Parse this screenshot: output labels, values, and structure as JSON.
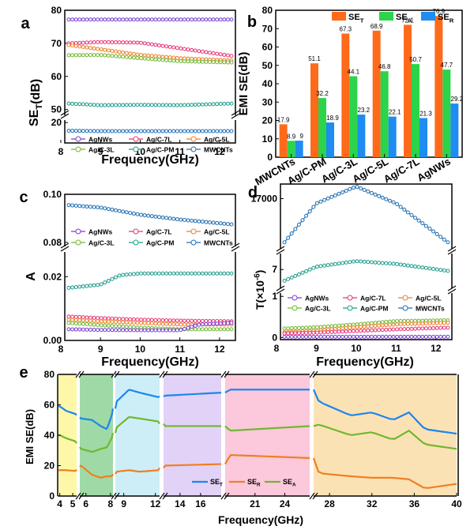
{
  "colors": {
    "AgNWs": "#7b3fd1",
    "Ag/C-7L": "#e8337a",
    "Ag/C-5L": "#f07f22",
    "Ag/C-3L": "#6fb82e",
    "Ag/C-PM": "#1e9c8c",
    "MWCNTs": "#1f6fb3",
    "SE_T": "#ff6a1a",
    "SE_A": "#2bd44a",
    "SE_R": "#1e8cf0",
    "lineT": "#1c86ee",
    "lineR": "#f07f22",
    "lineA": "#6fb82e"
  },
  "chart_data": [
    {
      "panel": "a",
      "type": "line",
      "title": "",
      "xlabel": "Frequency(GHz)",
      "ylabel": "SE_T(dB)",
      "xlim": [
        8.1,
        12.4
      ],
      "xticks": [
        8,
        9,
        10,
        11,
        12
      ],
      "upper_ylim": [
        48,
        80
      ],
      "upper_yticks": [
        50,
        60,
        70,
        80
      ],
      "lower_ylim": [
        15,
        21
      ],
      "lower_yticks": [
        20
      ],
      "series": [
        {
          "name": "AgNWs",
          "x": [
            8.2,
            9,
            10,
            11,
            12.3
          ],
          "values": [
            77.2,
            77.2,
            77.2,
            77.2,
            77.2
          ]
        },
        {
          "name": "Ag/C-7L",
          "x": [
            8.2,
            9,
            10,
            11,
            12.3
          ],
          "values": [
            70.0,
            70.4,
            70.2,
            68.5,
            66.2
          ]
        },
        {
          "name": "Ag/C-5L",
          "x": [
            8.2,
            9,
            10,
            11,
            12.3
          ],
          "values": [
            69.5,
            68.2,
            66.5,
            65.5,
            64.8
          ]
        },
        {
          "name": "Ag/C-3L",
          "x": [
            8.2,
            9,
            10,
            11,
            12.3
          ],
          "values": [
            66.4,
            66.5,
            65.5,
            64.6,
            64.2
          ]
        },
        {
          "name": "Ag/C-PM",
          "x": [
            8.2,
            9,
            10,
            11,
            12.3
          ],
          "values": [
            51.8,
            51.3,
            51.4,
            51.3,
            51.8
          ]
        },
        {
          "name": "MWCNTs",
          "x": [
            8.2,
            9,
            10,
            11,
            12.3
          ],
          "values": [
            18.0,
            17.9,
            17.9,
            17.9,
            17.9
          ]
        }
      ],
      "legend_labels": [
        "AgNWs",
        "Ag/C-7L",
        "Ag/C-5L",
        "Ag/C-3L",
        "Ag/C-PM",
        "MWCNTs"
      ]
    },
    {
      "panel": "b",
      "type": "bar",
      "ylabel": "EMI SE(dB)",
      "ylim": [
        0,
        80
      ],
      "yticks": [
        0,
        10,
        20,
        30,
        40,
        50,
        60,
        70,
        80
      ],
      "categories": [
        "MWCNTs",
        "Ag/C-PM",
        "Ag/C-3L",
        "Ag/C-5L",
        "Ag/C-7L",
        "AgNWs"
      ],
      "series": [
        {
          "name": "SE_T",
          "values": [
            17.9,
            51.1,
            67.3,
            68.9,
            72.1,
            76.9
          ]
        },
        {
          "name": "SE_A",
          "values": [
            8.9,
            32.2,
            44.1,
            46.8,
            50.7,
            47.7
          ]
        },
        {
          "name": "SE_R",
          "values": [
            9,
            18.9,
            23.2,
            22.1,
            21.3,
            29.2
          ]
        }
      ],
      "data_labels": [
        [
          "17.9",
          "51.1",
          "67.3",
          "68.9",
          "72.1",
          "76.9"
        ],
        [
          "8.9",
          "32.2",
          "44.1",
          "46.8",
          "50.7",
          "47.7"
        ],
        [
          "9",
          "18.9",
          "23.2",
          "22.1",
          "21.3",
          "29.2"
        ]
      ],
      "legend": [
        {
          "main": "SE",
          "sub": "T"
        },
        {
          "main": "SE",
          "sub": "A"
        },
        {
          "main": "SE",
          "sub": "R"
        }
      ]
    },
    {
      "panel": "c",
      "type": "line",
      "xlabel": "Frequency(GHz)",
      "ylabel": "A",
      "xlim": [
        8.1,
        12.4
      ],
      "xticks": [
        8,
        9,
        10,
        11,
        12
      ],
      "upper_ylim": [
        0.078,
        0.1
      ],
      "upper_yticks": [
        "0.08",
        "0.10"
      ],
      "lower_ylim": [
        0,
        0.028
      ],
      "lower_yticks": [
        "0.00",
        "0.02"
      ],
      "series": [
        {
          "name": "MWCNTs",
          "x": [
            8.2,
            9,
            10,
            11,
            12.3
          ],
          "values": [
            0.0955,
            0.0945,
            0.0915,
            0.0895,
            0.0875
          ]
        },
        {
          "name": "Ag/C-PM",
          "x": [
            8.2,
            9,
            9.5,
            10,
            11,
            12.3
          ],
          "values": [
            0.0165,
            0.0175,
            0.0205,
            0.021,
            0.021,
            0.021
          ]
        },
        {
          "name": "Ag/C-7L",
          "x": [
            8.2,
            9,
            10,
            11,
            12.3
          ],
          "values": [
            0.0075,
            0.007,
            0.0065,
            0.0062,
            0.006
          ]
        },
        {
          "name": "Ag/C-5L",
          "x": [
            8.2,
            9,
            10,
            11,
            12.3
          ],
          "values": [
            0.0065,
            0.006,
            0.0055,
            0.005,
            0.005
          ]
        },
        {
          "name": "Ag/C-3L",
          "x": [
            8.2,
            9,
            10,
            11,
            12.3
          ],
          "values": [
            0.0055,
            0.0048,
            0.004,
            0.0035,
            0.0035
          ]
        },
        {
          "name": "AgNWs",
          "x": [
            8.2,
            9,
            10,
            11,
            11.5,
            12.3
          ],
          "values": [
            0.0035,
            0.0033,
            0.0032,
            0.0032,
            0.005,
            0.0055
          ]
        }
      ],
      "legend_labels": [
        "AgNWs",
        "Ag/C-7L",
        "Ag/C-5L",
        "Ag/C-3L",
        "Ag/C-PM",
        "MWCNTs"
      ]
    },
    {
      "panel": "d",
      "type": "line",
      "xlabel": "Frequency(GHz)",
      "ylabel": "T(×10^-6)",
      "ylabel_main": "T(×10",
      "ylabel_sup": "-6",
      "ylabel_end": ")",
      "xlim": [
        8.1,
        12.4
      ],
      "xticks": [
        8,
        9,
        10,
        11,
        12
      ],
      "top_yticks": [
        "17000"
      ],
      "mid_yticks": [
        "7"
      ],
      "bottom_yticks": [
        "0",
        "1"
      ],
      "series": [
        {
          "name": "MWCNTs",
          "x": [
            8.2,
            9,
            10,
            11,
            12.3
          ],
          "values": [
            16100,
            16900,
            17250,
            16900,
            16100
          ]
        },
        {
          "name": "Ag/C-PM",
          "x": [
            8.2,
            9,
            10,
            11,
            12.3
          ],
          "values": [
            6.2,
            7.2,
            7.6,
            7.4,
            6.9
          ]
        },
        {
          "name": "Ag/C-3L",
          "x": [
            8.2,
            9,
            10,
            11,
            12.3
          ],
          "values": [
            0.22,
            0.25,
            0.32,
            0.4,
            0.42
          ]
        },
        {
          "name": "Ag/C-5L",
          "x": [
            8.2,
            9,
            10,
            11,
            12.3
          ],
          "values": [
            0.13,
            0.17,
            0.25,
            0.32,
            0.36
          ]
        },
        {
          "name": "Ag/C-7L",
          "x": [
            8.2,
            9,
            10,
            11,
            12.3
          ],
          "values": [
            0.1,
            0.12,
            0.16,
            0.2,
            0.24
          ]
        },
        {
          "name": "AgNWs",
          "x": [
            8.2,
            9,
            10,
            11,
            12.3
          ],
          "values": [
            0.02,
            0.02,
            0.02,
            0.02,
            0.02
          ]
        }
      ],
      "legend_labels": [
        "AgNWs",
        "Ag/C-7L",
        "Ag/C-5L",
        "Ag/C-3L",
        "Ag/C-PM",
        "MWCNTs"
      ]
    },
    {
      "panel": "e",
      "type": "line",
      "xlabel": "Frequency(GHz)",
      "ylabel": "EMI SE(dB)",
      "ylim": [
        0,
        80
      ],
      "yticks": [
        0,
        20,
        40,
        60,
        80
      ],
      "segments": [
        {
          "range": [
            3.9,
            5.3
          ],
          "ticks": [
            4,
            5
          ],
          "color": "#fff7a8"
        },
        {
          "range": [
            5.5,
            8.2
          ],
          "ticks": [
            6,
            8
          ],
          "color": "#9fd9a6"
        },
        {
          "range": [
            8.2,
            12.4
          ],
          "ticks": [
            9,
            12
          ],
          "color": "#cdeef7"
        },
        {
          "range": [
            12.4,
            18
          ],
          "ticks": [
            14,
            16
          ],
          "color": "#e2d2f7"
        },
        {
          "range": [
            18,
            26.5
          ],
          "ticks": [
            21,
            24
          ],
          "color": "#fbc8dc"
        },
        {
          "range": [
            26.5,
            40
          ],
          "ticks": [
            28,
            32,
            36,
            40
          ],
          "color": "#fbe2b5"
        }
      ],
      "series": [
        {
          "name": "SE_T",
          "x": [
            4,
            4.5,
            5.2,
            5.6,
            6.5,
            7.2,
            7.7,
            8.1,
            8.3,
            9.5,
            10.5,
            12.3,
            12.5,
            18,
            18.5,
            26.5,
            27,
            30,
            32,
            34,
            35.5,
            37,
            40
          ],
          "values": [
            59,
            56,
            54,
            51,
            50,
            46,
            44,
            53,
            62,
            70,
            68,
            65,
            66,
            68,
            70,
            70,
            62,
            53,
            55,
            50,
            55,
            44,
            41
          ]
        },
        {
          "name": "SE_A",
          "x": [
            4,
            4.5,
            5.2,
            5.6,
            6.5,
            7.2,
            7.7,
            8.1,
            8.3,
            9.5,
            10.5,
            12.3,
            12.5,
            18,
            18.5,
            26.5,
            27,
            30,
            32,
            34,
            35.5,
            37,
            40
          ],
          "values": [
            40,
            38,
            36,
            31,
            29,
            31,
            32,
            38,
            45,
            52,
            51,
            49,
            46,
            46,
            43,
            46,
            47,
            40,
            42,
            37,
            43,
            34,
            31
          ]
        },
        {
          "name": "SE_R",
          "x": [
            4,
            4.5,
            5.2,
            5.6,
            6.5,
            7.2,
            7.7,
            8.1,
            8.3,
            9.5,
            10.5,
            12.3,
            12.5,
            18,
            18.5,
            26.5,
            27,
            30,
            32,
            34,
            35.5,
            37,
            40
          ],
          "values": [
            17,
            17,
            16.5,
            20,
            14,
            12,
            13,
            13,
            16,
            17,
            16,
            17,
            20,
            21,
            27,
            25,
            15,
            13,
            12,
            12,
            11,
            5,
            8
          ]
        }
      ],
      "legend": [
        {
          "main": "SE",
          "sub": "T"
        },
        {
          "main": "SE",
          "sub": "R"
        },
        {
          "main": "SE",
          "sub": "A"
        }
      ]
    }
  ],
  "panel_labels": {
    "a": "a",
    "b": "b",
    "c": "c",
    "d": "d",
    "e": "e"
  }
}
